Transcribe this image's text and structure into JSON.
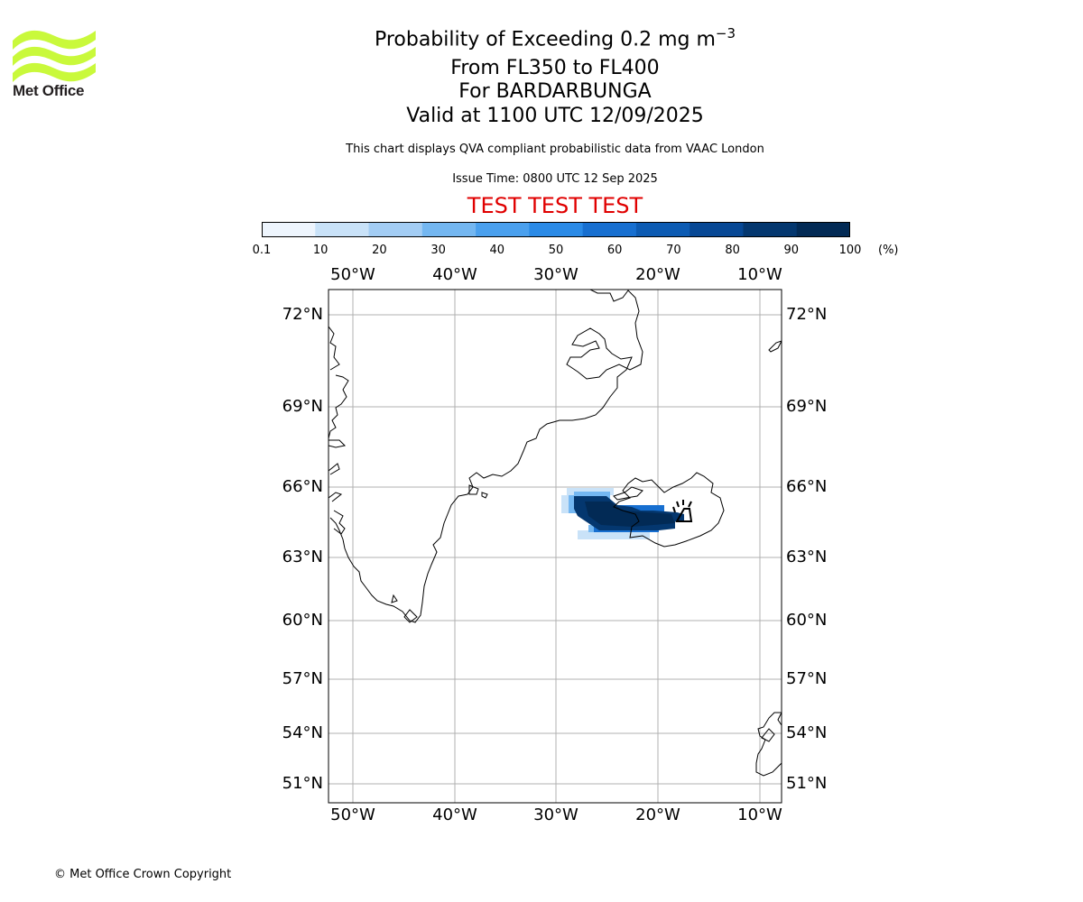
{
  "logo": {
    "text": "Met Office",
    "icon": "met-office-wave-logo",
    "color": "#c9f93b"
  },
  "title": {
    "main": "Probability of Exceeding 0.2 mg m",
    "main_sup": "−3",
    "levels": "From FL350 to FL400",
    "volcano": "For BARDARBUNGA",
    "valid": "Valid at 1100 UTC 12/09/2025"
  },
  "description": "This chart displays QVA compliant probabilistic data from VAAC London",
  "issue_time": "Issue Time: 0800 UTC 12 Sep 2025",
  "test_banner": {
    "text": "TEST TEST TEST",
    "color": "#e00000"
  },
  "colorbar": {
    "ticks": [
      "0.1",
      "10",
      "20",
      "30",
      "40",
      "50",
      "60",
      "70",
      "80",
      "90",
      "100"
    ],
    "unit": "(%)",
    "colors": [
      "#eef5fd",
      "#c9e2f8",
      "#a3cdf4",
      "#74b7f1",
      "#4aa0ee",
      "#2a8ae6",
      "#176fd0",
      "#0c5bb3",
      "#074895",
      "#04376f",
      "#022a55"
    ]
  },
  "map": {
    "lon_labels": [
      "50°W",
      "40°W",
      "30°W",
      "20°W",
      "10°W"
    ],
    "lat_labels": [
      "72°N",
      "69°N",
      "66°N",
      "63°N",
      "60°N",
      "57°N",
      "54°N",
      "51°N"
    ],
    "volcano_symbol": "volcano-icon",
    "grid": true
  },
  "copyright": "© Met Office Crown Copyright"
}
